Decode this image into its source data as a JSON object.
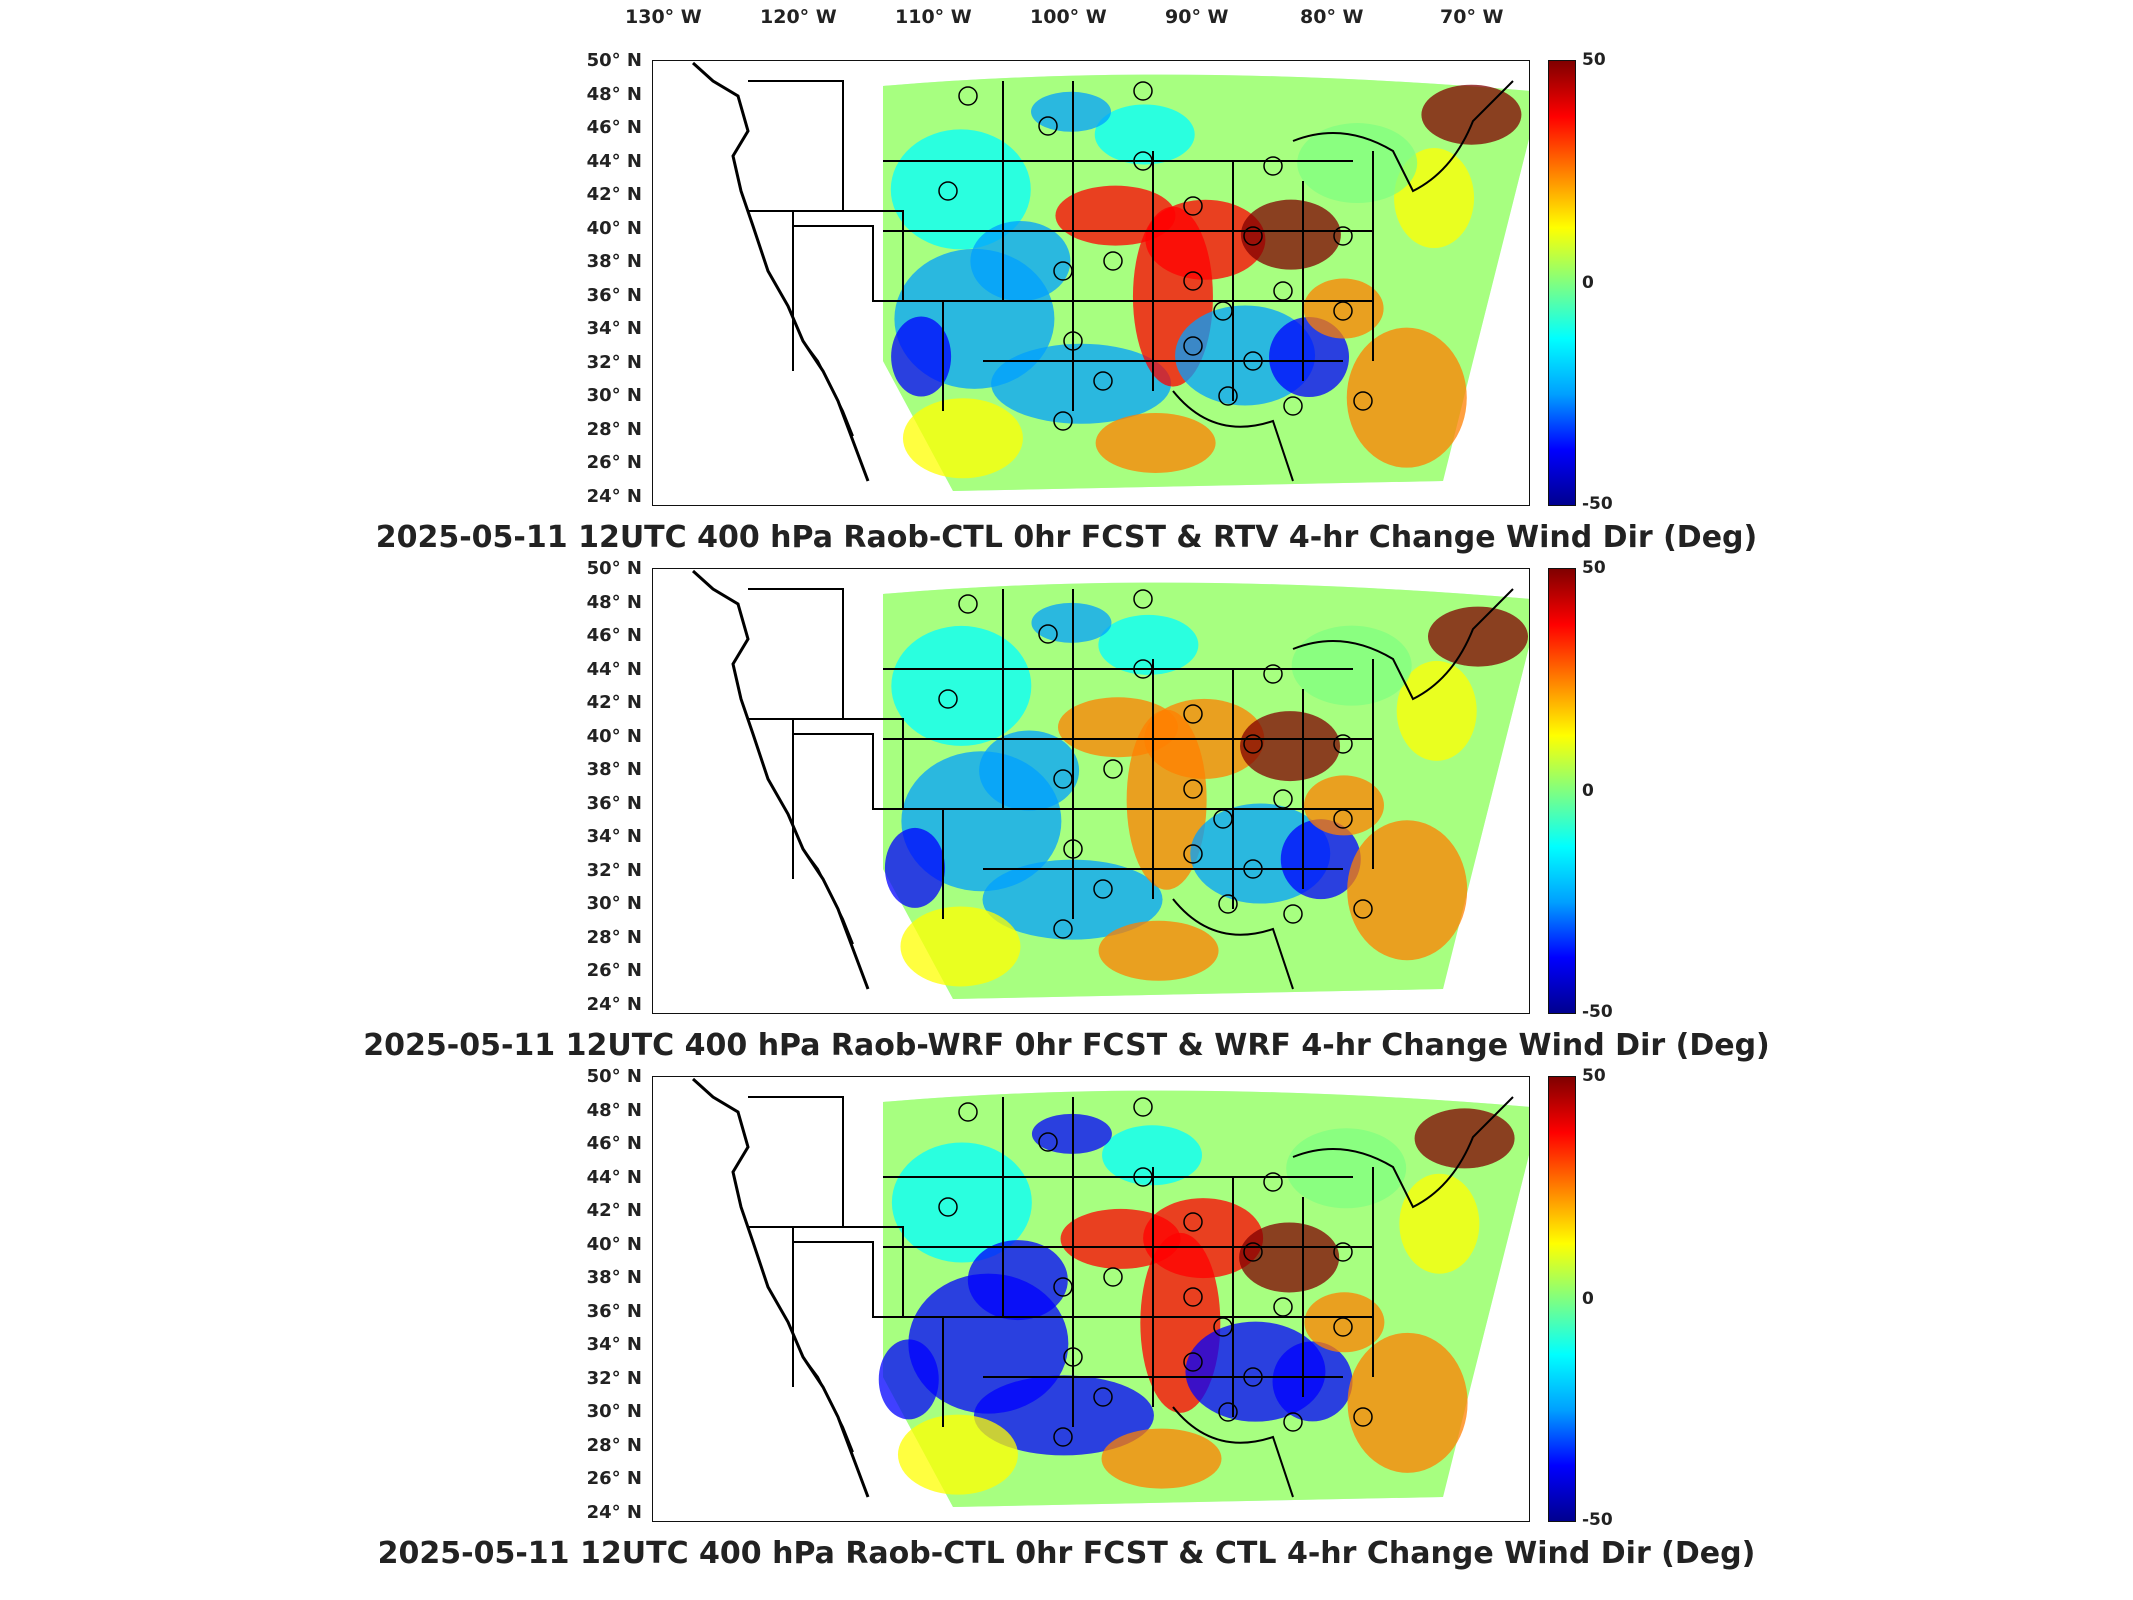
{
  "longitude_labels": [
    "130° W",
    "120° W",
    "110° W",
    "100° W",
    "90° W",
    "80° W",
    "70° W"
  ],
  "latitude_labels": [
    "50° N",
    "48° N",
    "46° N",
    "44° N",
    "42° N",
    "40° N",
    "38° N",
    "36° N",
    "34° N",
    "32° N",
    "30° N",
    "28° N",
    "26° N",
    "24° N"
  ],
  "colorbar": {
    "max_label": "50",
    "mid_label": "0",
    "min_label": "-50",
    "colors": [
      "#00008f",
      "#0000ff",
      "#00a0ff",
      "#00ffff",
      "#80ff80",
      "#ffff00",
      "#ff8000",
      "#ff0000",
      "#800000"
    ]
  },
  "panels": [
    {
      "title": "2025-05-11 12UTC 400 hPa Raob-CTL 0hr FCST & RTV 4-hr Change Wind Dir (Deg)"
    },
    {
      "title": "2025-05-11 12UTC 400 hPa Raob-WRF 0hr FCST & WRF 4-hr Change Wind Dir (Deg)"
    },
    {
      "title": "2025-05-11 12UTC 400 hPa Raob-CTL 0hr FCST & CTL 4-hr Change Wind Dir (Deg)"
    }
  ]
}
